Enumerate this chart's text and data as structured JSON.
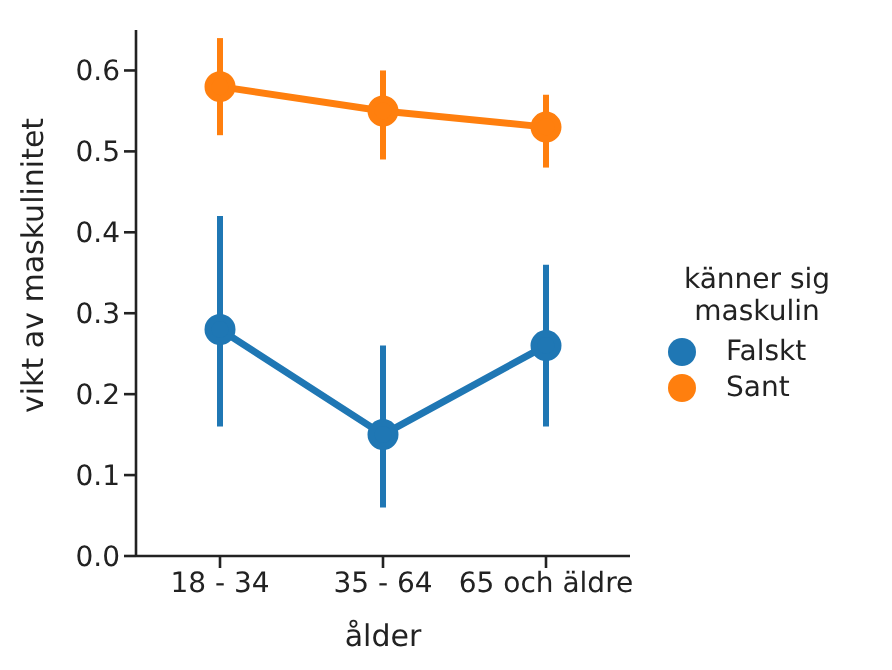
{
  "chart_data": {
    "type": "line",
    "xlabel": "ålder",
    "ylabel": "vikt av maskulinitet",
    "legend_title": "känner sig\nmaskulin",
    "categories": [
      "18 - 34",
      "35 - 64",
      "65 och äldre"
    ],
    "series": [
      {
        "name": "Falskt",
        "color": "#1f77b4",
        "values": [
          0.28,
          0.15,
          0.26
        ],
        "errors": [
          [
            0.16,
            0.42
          ],
          [
            0.06,
            0.26
          ],
          [
            0.16,
            0.36
          ]
        ]
      },
      {
        "name": "Sant",
        "color": "#ff7f0e",
        "values": [
          0.58,
          0.55,
          0.53
        ],
        "errors": [
          [
            0.52,
            0.64
          ],
          [
            0.49,
            0.6
          ],
          [
            0.48,
            0.57
          ]
        ]
      }
    ],
    "ylim": [
      0,
      0.65
    ],
    "yticks": [
      {
        "value": 0,
        "label": "0.0"
      },
      0.1,
      0.2,
      0.3,
      0.4,
      0.5,
      0.6
    ],
    "grid": false,
    "legend": "right",
    "marker": "circle",
    "line_style": "solid"
  }
}
